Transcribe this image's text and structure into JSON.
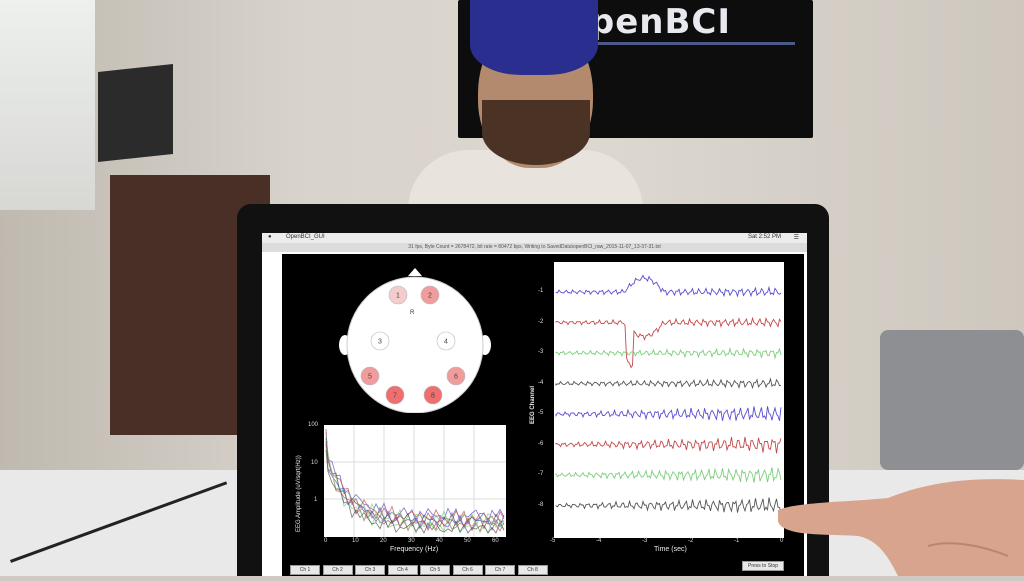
{
  "tv": {
    "logo": "OpenBCI"
  },
  "menubar": {
    "app_name": "OpenBCI_GUI",
    "clock": "Sat 2:52 PM"
  },
  "titlebar": {
    "status": "31 fps, Byte Count = 2678472, bit rate = 80472 bps, Writing to SavedData\\openBCI_raw_2015-11-07_13-37-31.txt"
  },
  "head_plot": {
    "electrodes": [
      "1",
      "2",
      "3",
      "4",
      "5",
      "6",
      "7",
      "8"
    ],
    "marker": "R",
    "colors": {
      "light": "#f4cccc",
      "medium": "#f19c9c",
      "strong": "#ef6f6f"
    }
  },
  "fft": {
    "ylabel": "EEG Amplitude (uV/sqrt(Hz))",
    "xlabel": "Frequency (Hz)",
    "yticks": [
      "100",
      "10",
      "1"
    ],
    "xticks": [
      "0",
      "10",
      "20",
      "30",
      "40",
      "50",
      "60"
    ]
  },
  "timeseries": {
    "ylabel": "EEG Channel",
    "xlabel": "Time (sec)",
    "channel_ticks": [
      "-1",
      "-2",
      "-3",
      "-4",
      "-5",
      "-6",
      "-7",
      "-8"
    ],
    "xticks": [
      "-5",
      "-4",
      "-3",
      "-2",
      "-1",
      "0"
    ],
    "colors": [
      "#5a4fcf",
      "#c44a4a",
      "#7bcf7b",
      "#555555",
      "#5a4fcf",
      "#c44a4a",
      "#7bcf7b",
      "#555555"
    ]
  },
  "buttons": {
    "channels": [
      "Ch 1",
      "Ch 2",
      "Ch 3",
      "Ch 4",
      "Ch 5",
      "Ch 6",
      "Ch 7",
      "Ch 8"
    ],
    "stop": "Press to Stop"
  }
}
